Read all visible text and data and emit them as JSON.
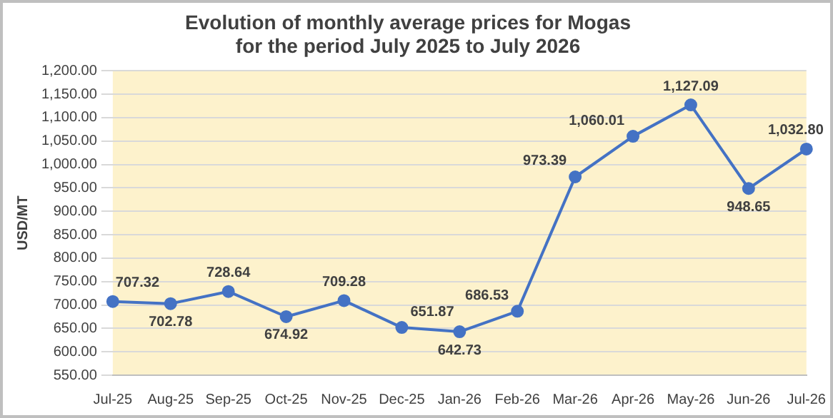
{
  "chart_data": {
    "type": "line",
    "title": "Evolution of monthly average prices for Mogas\nfor the period July 2025 to July 2026",
    "ylabel": "USD/MT",
    "categories": [
      "Jul-25",
      "Aug-25",
      "Sep-25",
      "Oct-25",
      "Nov-25",
      "Dec-25",
      "Jan-26",
      "Feb-26",
      "Mar-26",
      "Apr-26",
      "May-26",
      "Jun-26",
      "Jul-26"
    ],
    "series": [
      {
        "color": "#4472c4",
        "values": [
          707.32,
          702.78,
          728.64,
          674.92,
          709.28,
          651.87,
          642.73,
          686.53,
          973.39,
          1060.01,
          1127.09,
          948.65,
          1032.8
        ],
        "value_labels": [
          "707.32",
          "702.78",
          "728.64",
          "674.92",
          "709.28",
          "651.87",
          "642.73",
          "686.53",
          "973.39",
          "1,060.01",
          "1,127.09",
          "948.65",
          "1,032.80"
        ]
      }
    ],
    "ylim": [
      550,
      1200
    ],
    "yticks": [
      {
        "value": 550,
        "label": "550.00"
      },
      {
        "value": 600,
        "label": "600.00"
      },
      {
        "value": 650,
        "label": "650.00"
      },
      {
        "value": 700,
        "label": "700.00"
      },
      {
        "value": 750,
        "label": "750.00"
      },
      {
        "value": 800,
        "label": "800.00"
      },
      {
        "value": 850,
        "label": "850.00"
      },
      {
        "value": 900,
        "label": "900.00"
      },
      {
        "value": 950,
        "label": "950.00"
      },
      {
        "value": 1000,
        "label": "1,000.00"
      },
      {
        "value": 1050,
        "label": "1,050.00"
      },
      {
        "value": 1100,
        "label": "1,100.00"
      },
      {
        "value": 1150,
        "label": "1,150.00"
      },
      {
        "value": 1200,
        "label": "1,200.00"
      }
    ],
    "grid": "y",
    "legend": false,
    "marker": "circle",
    "line_style": "solid"
  }
}
